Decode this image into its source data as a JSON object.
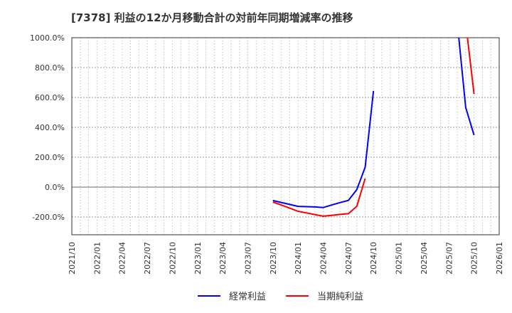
{
  "title": "[7378]  利益の12か月移動合計の対前年同期増減率の推移",
  "colors": {
    "series1": "#0000ff",
    "series2": "#ff0000",
    "grid": "#999999",
    "axis": "#333333"
  },
  "chart_data": {
    "type": "line",
    "title": "[7378]  利益の12か月移動合計の対前年同期増減率の推移",
    "xlabel": "",
    "ylabel": "",
    "ylim": [
      -320,
      1000
    ],
    "yticks": [
      1000,
      800,
      600,
      400,
      200,
      0,
      -200
    ],
    "ytick_labels": [
      "1000.0%",
      "800.0%",
      "600.0%",
      "400.0%",
      "200.0%",
      "0.0%",
      "-200.0%"
    ],
    "xtick_labels": [
      "2021/10",
      "2022/01",
      "2022/04",
      "2022/07",
      "2022/10",
      "2023/01",
      "2023/04",
      "2023/07",
      "2023/10",
      "2024/01",
      "2024/04",
      "2024/07",
      "2024/10",
      "2025/01",
      "2025/04",
      "2025/07",
      "2025/10",
      "2026/01"
    ],
    "x_start": "2021/10",
    "x_end": "2026/01",
    "grid": true,
    "legend_position": "bottom",
    "series": [
      {
        "name": "経常利益",
        "color": "#0000ff",
        "points": [
          {
            "x": "2023/10",
            "y": -90
          },
          {
            "x": "2023/11",
            "y": -103
          },
          {
            "x": "2023/12",
            "y": -116
          },
          {
            "x": "2024/01",
            "y": -129
          },
          {
            "x": "2024/02",
            "y": -131
          },
          {
            "x": "2024/03",
            "y": -133
          },
          {
            "x": "2024/04",
            "y": -137
          },
          {
            "x": "2024/05",
            "y": -120
          },
          {
            "x": "2024/06",
            "y": -104
          },
          {
            "x": "2024/07",
            "y": -89
          },
          {
            "x": "2024/08",
            "y": -17
          },
          {
            "x": "2024/09",
            "y": 133
          },
          {
            "x": "2024/10",
            "y": 644
          },
          {
            "x": "2025/07",
            "y": 1000,
            "clipped": true
          },
          {
            "x": "2025/08",
            "y": 1000,
            "clipped": true
          },
          {
            "x": "2025/09",
            "y": 533
          },
          {
            "x": "2025/10",
            "y": 348
          }
        ]
      },
      {
        "name": "当期純利益",
        "color": "#ff0000",
        "points": [
          {
            "x": "2023/10",
            "y": -100
          },
          {
            "x": "2023/11",
            "y": -120
          },
          {
            "x": "2023/12",
            "y": -141
          },
          {
            "x": "2024/01",
            "y": -162
          },
          {
            "x": "2024/02",
            "y": -173
          },
          {
            "x": "2024/03",
            "y": -184
          },
          {
            "x": "2024/04",
            "y": -195
          },
          {
            "x": "2024/05",
            "y": -189
          },
          {
            "x": "2024/06",
            "y": -183
          },
          {
            "x": "2024/07",
            "y": -178
          },
          {
            "x": "2024/08",
            "y": -129
          },
          {
            "x": "2024/09",
            "y": 57
          },
          {
            "x": "2025/09",
            "y": 1000,
            "clipped": true
          },
          {
            "x": "2025/10",
            "y": 624
          }
        ]
      }
    ]
  },
  "legend": {
    "items": [
      {
        "label": "経常利益",
        "color": "#0000ff"
      },
      {
        "label": "当期純利益",
        "color": "#ff0000"
      }
    ]
  }
}
